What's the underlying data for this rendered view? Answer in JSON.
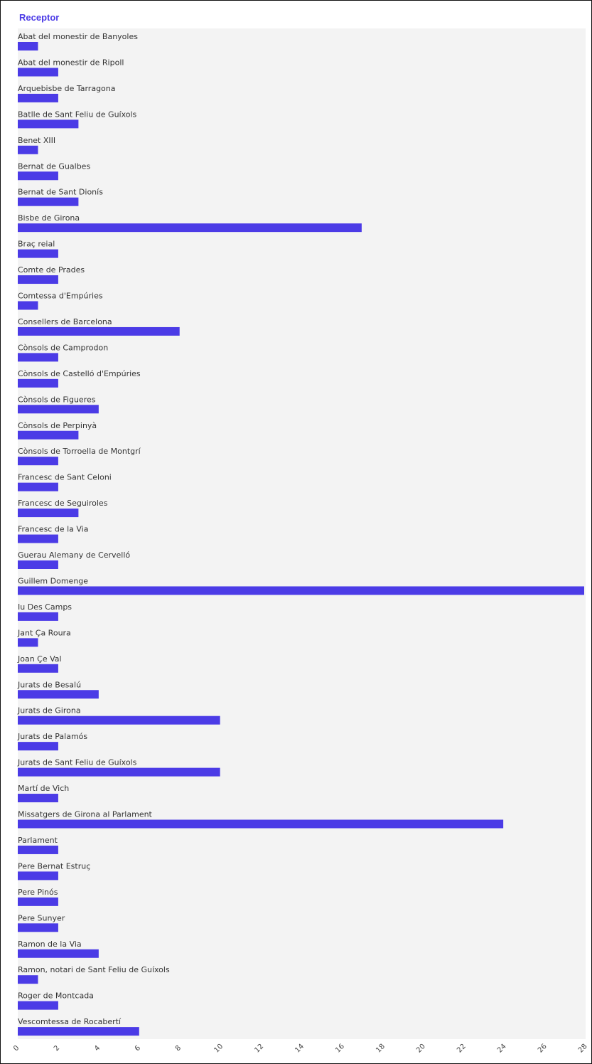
{
  "chart_data": {
    "type": "bar",
    "orientation": "horizontal",
    "title": "Receptor",
    "xlabel": "",
    "ylabel": "",
    "xlim": [
      0,
      28
    ],
    "xticks": [
      0,
      2,
      4,
      6,
      8,
      10,
      12,
      14,
      16,
      18,
      20,
      22,
      24,
      26,
      28
    ],
    "grid": false,
    "colors": {
      "bar": "#4b3be6",
      "plot_background": "#f3f3f3",
      "title": "#4b3be6"
    },
    "categories": [
      "Abat del monestir de Banyoles",
      "Abat del monestir de Ripoll",
      "Arquebisbe de Tarragona",
      "Batlle de Sant Feliu de Guíxols",
      "Benet XIII",
      "Bernat de Gualbes",
      "Bernat de Sant Dionís",
      "Bisbe de Girona",
      "Braç reial",
      "Comte de Prades",
      "Comtessa d'Empúries",
      "Consellers de Barcelona",
      "Cònsols de Camprodon",
      "Cònsols de Castelló d'Empúries",
      "Cònsols de Figueres",
      "Cònsols de Perpinyà",
      "Cònsols de Torroella de Montgrí",
      "Francesc de Sant Celoni",
      "Francesc de Seguiroles",
      "Francesc de la Via",
      "Guerau Alemany de Cervelló",
      "Guillem Domenge",
      "Iu Des Camps",
      "Jant Ça Roura",
      "Joan Çe Val",
      "Jurats de Besalú",
      "Jurats de Girona",
      "Jurats de Palamós",
      "Jurats de Sant Feliu de Guíxols",
      "Martí de Vich",
      "Missatgers de Girona al Parlament",
      "Parlament",
      "Pere Bernat Estruç",
      "Pere Pinós",
      "Pere Sunyer",
      "Ramon de la Via",
      "Ramon, notari de Sant Feliu de Guíxols",
      "Roger de Montcada",
      "Vescomtessa de Rocabertí"
    ],
    "values": [
      1,
      2,
      2,
      3,
      1,
      2,
      3,
      17,
      2,
      2,
      1,
      8,
      2,
      2,
      4,
      3,
      2,
      2,
      3,
      2,
      2,
      28,
      2,
      1,
      2,
      4,
      10,
      2,
      10,
      2,
      24,
      2,
      2,
      2,
      2,
      4,
      1,
      2,
      6
    ]
  }
}
